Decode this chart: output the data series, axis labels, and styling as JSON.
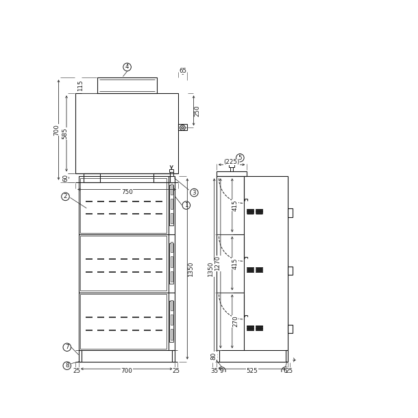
{
  "bg": "#ffffff",
  "lc": "#1a1a1a",
  "lw": 0.8,
  "lw_thin": 0.5,
  "fs": 6.3,
  "fig_w": 6.1,
  "fig_h": 6.1,
  "dpi": 100
}
